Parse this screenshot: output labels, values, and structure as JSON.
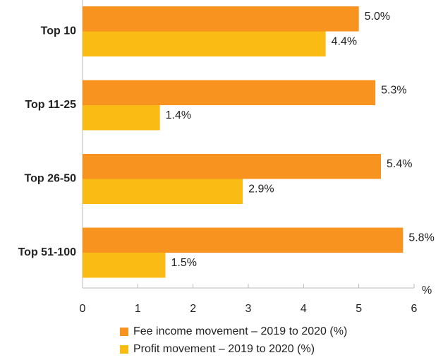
{
  "chart_data": {
    "type": "bar",
    "orientation": "horizontal",
    "categories": [
      "Top 10",
      "Top 11-25",
      "Top 26-50",
      "Top 51-100"
    ],
    "series": [
      {
        "name": "Fee income movement – 2019 to 2020 (%)",
        "color": "#f7931e",
        "values": [
          5.0,
          5.3,
          5.4,
          5.8
        ],
        "value_labels": [
          "5.0%",
          "5.3%",
          "5.4%",
          "5.8%"
        ]
      },
      {
        "name": "Profit movement – 2019 to 2020 (%)",
        "color": "#fbbb15",
        "values": [
          4.4,
          1.4,
          2.9,
          1.5
        ],
        "value_labels": [
          "4.4%",
          "1.4%",
          "2.9%",
          "1.5%"
        ]
      }
    ],
    "xlabel": "%",
    "xlim": [
      0,
      6
    ],
    "xticks": [
      0,
      1,
      2,
      3,
      4,
      5,
      6
    ],
    "legend": "bottom"
  }
}
